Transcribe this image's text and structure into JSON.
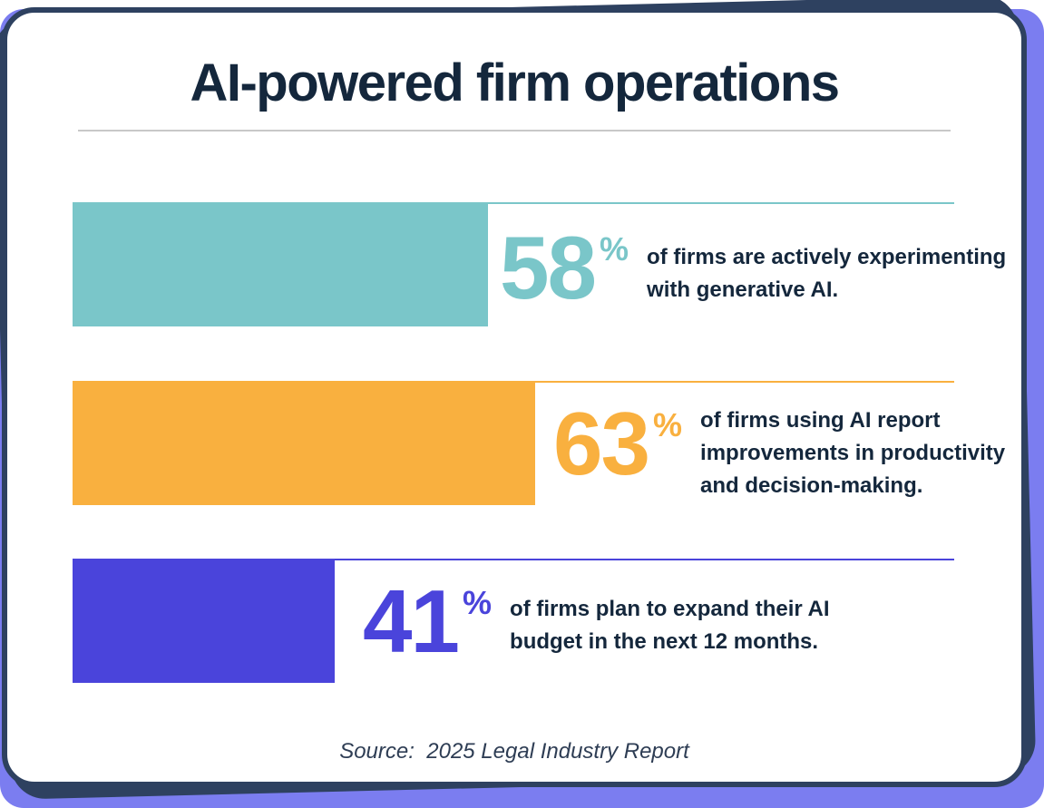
{
  "page": {
    "title": "AI-powered firm operations",
    "source_caption": "Source:  2025 Legal Industry Report"
  },
  "colors": {
    "frame_background": "#7b7df0",
    "card_border_navy": "#2e4160",
    "card_background": "#ffffff",
    "heading_text": "#14273c",
    "body_text": "#14273c",
    "divider_gray": "#c8c8c8",
    "teal": "#7ac6c9",
    "orange": "#f9b03f",
    "blue": "#4a44db"
  },
  "chart_data": {
    "type": "bar",
    "orientation": "horizontal",
    "title": "AI-powered firm operations",
    "unit": "%",
    "value_range": [
      0,
      100
    ],
    "grid": false,
    "legend": false,
    "source": "Source:  2025 Legal Industry Report",
    "categories": [
      "firms actively experimenting with generative AI",
      "firms using AI reporting improvements in productivity and decision-making",
      "firms planning to expand their AI budget in the next 12 months"
    ],
    "values": [
      58,
      63,
      41
    ],
    "rows": [
      {
        "value": "58",
        "suffix": "%",
        "description": "of firms are actively experimenting with generative AI.",
        "lines": [
          "of firms are actively experimenting",
          "with generative AI."
        ],
        "color": "#7ac6c9",
        "bar_width_pct": 47.1
      },
      {
        "value": "63",
        "suffix": "%",
        "description": "of firms using AI report improvements in productivity and decision-making.",
        "lines": [
          "of firms using AI report",
          "improvements in productivity",
          "and decision-making."
        ],
        "color": "#f9b03f",
        "bar_width_pct": 52.5
      },
      {
        "value": "41",
        "suffix": "%",
        "description": "of firms plan to expand their AI budget in the next 12 months.",
        "lines": [
          "of firms plan to expand their AI",
          "budget in the next 12 months."
        ],
        "color": "#4a44db",
        "bar_width_pct": 29.7
      }
    ]
  }
}
